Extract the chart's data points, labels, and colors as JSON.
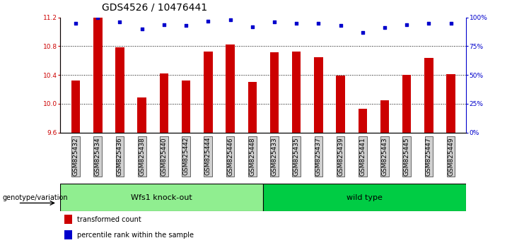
{
  "title": "GDS4526 / 10476441",
  "samples": [
    "GSM825432",
    "GSM825434",
    "GSM825436",
    "GSM825438",
    "GSM825440",
    "GSM825442",
    "GSM825444",
    "GSM825446",
    "GSM825448",
    "GSM825433",
    "GSM825435",
    "GSM825437",
    "GSM825439",
    "GSM825441",
    "GSM825443",
    "GSM825445",
    "GSM825447",
    "GSM825449"
  ],
  "bar_values": [
    10.32,
    11.2,
    10.79,
    10.09,
    10.42,
    10.32,
    10.73,
    10.82,
    10.3,
    10.72,
    10.73,
    10.65,
    10.39,
    9.93,
    10.05,
    10.4,
    10.64,
    10.41
  ],
  "dot_values": [
    95,
    100,
    96,
    90,
    94,
    93,
    97,
    98,
    92,
    96,
    95,
    95,
    93,
    87,
    91,
    94,
    95,
    95
  ],
  "group1_label": "Wfs1 knock-out",
  "group2_label": "wild type",
  "group1_count": 9,
  "group2_count": 9,
  "ylim_left": [
    9.6,
    11.2
  ],
  "ylim_right": [
    0,
    100
  ],
  "yticks_left": [
    9.6,
    10.0,
    10.4,
    10.8,
    11.2
  ],
  "yticks_right": [
    0,
    25,
    50,
    75,
    100
  ],
  "bar_color": "#cc0000",
  "dot_color": "#0000cc",
  "bar_bottom": 9.6,
  "group1_color": "#90ee90",
  "group2_color": "#00cc44",
  "xlabel_label": "genotype/variation",
  "legend_bar": "transformed count",
  "legend_dot": "percentile rank within the sample",
  "title_fontsize": 10,
  "tick_fontsize": 6.5,
  "label_fontsize": 8,
  "group_label_fontsize": 8
}
